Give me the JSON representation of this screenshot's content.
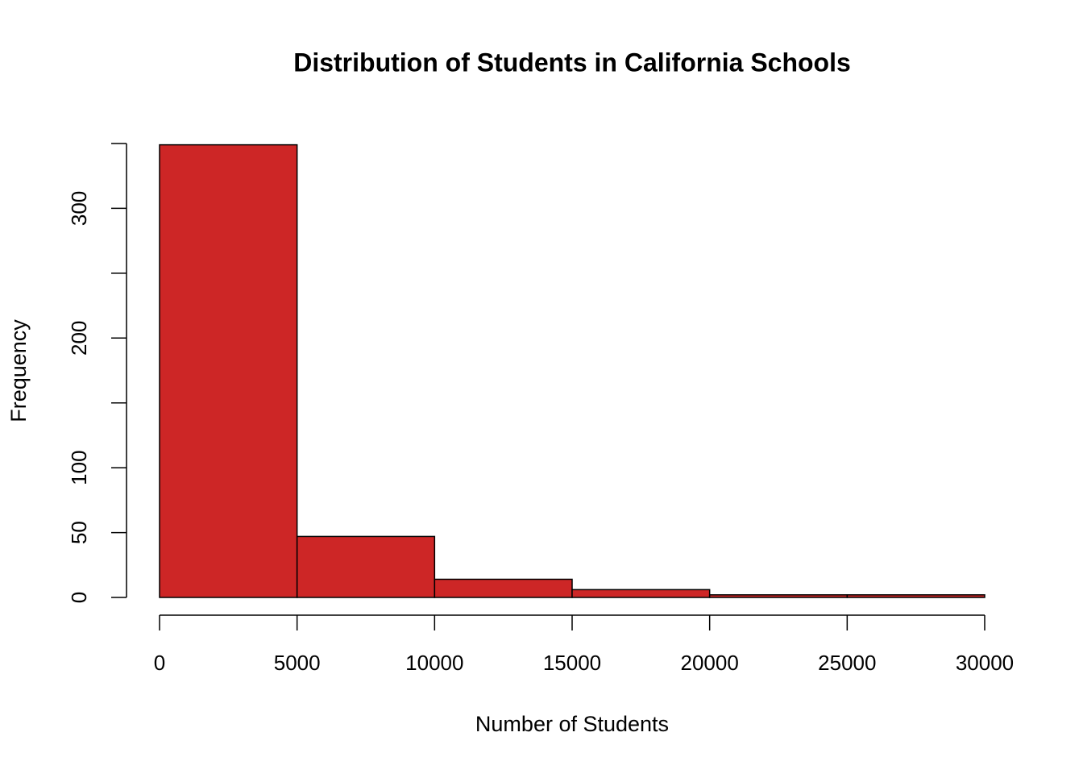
{
  "chart_data": {
    "type": "histogram",
    "title": "Distribution of Students in California Schools",
    "x_label": "Number of Students",
    "y_label": "Frequency",
    "bins": [
      0,
      5000,
      10000,
      15000,
      20000,
      25000,
      30000
    ],
    "counts": [
      349,
      47,
      14,
      6,
      2,
      2
    ],
    "color": "#cd2626",
    "edge_color": "#000000",
    "xlim": [
      0,
      30000
    ],
    "xticks": [
      0,
      5000,
      10000,
      15000,
      20000,
      25000,
      30000
    ],
    "ylim": [
      0,
      350
    ],
    "yticks": [
      0,
      50,
      100,
      200,
      300
    ],
    "yticks_unlabeled": [
      150,
      250,
      350
    ],
    "grid": false
  }
}
